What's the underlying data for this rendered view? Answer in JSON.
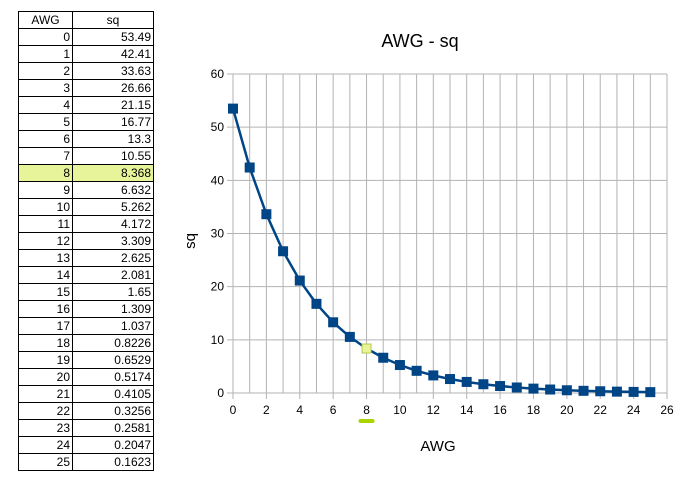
{
  "table": {
    "headers": [
      "AWG",
      "sq"
    ],
    "rows": [
      [
        "0",
        "53.49"
      ],
      [
        "1",
        "42.41"
      ],
      [
        "2",
        "33.63"
      ],
      [
        "3",
        "26.66"
      ],
      [
        "4",
        "21.15"
      ],
      [
        "5",
        "16.77"
      ],
      [
        "6",
        "13.3"
      ],
      [
        "7",
        "10.55"
      ],
      [
        "8",
        "8.368"
      ],
      [
        "9",
        "6.632"
      ],
      [
        "10",
        "5.262"
      ],
      [
        "11",
        "4.172"
      ],
      [
        "12",
        "3.309"
      ],
      [
        "13",
        "2.625"
      ],
      [
        "14",
        "2.081"
      ],
      [
        "15",
        "1.65"
      ],
      [
        "16",
        "1.309"
      ],
      [
        "17",
        "1.037"
      ],
      [
        "18",
        "0.8226"
      ],
      [
        "19",
        "0.6529"
      ],
      [
        "20",
        "0.5174"
      ],
      [
        "21",
        "0.4105"
      ],
      [
        "22",
        "0.3256"
      ],
      [
        "23",
        "0.2581"
      ],
      [
        "24",
        "0.2047"
      ],
      [
        "25",
        "0.1623"
      ]
    ],
    "highlight_row": 8,
    "highlight_color": "#e8f49a"
  },
  "chart_data": {
    "type": "scatter",
    "title": "AWG - sq",
    "xlabel": "AWG",
    "ylabel": "sq",
    "xlim": [
      0,
      26
    ],
    "ylim": [
      0,
      60
    ],
    "xticks": [
      0,
      2,
      4,
      6,
      8,
      10,
      12,
      14,
      16,
      18,
      20,
      22,
      24,
      26
    ],
    "yticks": [
      0,
      10,
      20,
      30,
      40,
      50,
      60
    ],
    "grid": true,
    "series": [
      {
        "x": [
          0,
          1,
          2,
          3,
          4,
          5,
          6,
          7,
          8,
          9,
          10,
          11,
          12,
          13,
          14,
          15,
          16,
          17,
          18,
          19,
          20,
          21,
          22,
          23,
          24,
          25
        ],
        "y": [
          53.49,
          42.41,
          33.63,
          26.66,
          21.15,
          16.77,
          13.3,
          10.55,
          8.368,
          6.632,
          5.262,
          4.172,
          3.309,
          2.625,
          2.081,
          1.65,
          1.309,
          1.037,
          0.8226,
          0.6529,
          0.5174,
          0.4105,
          0.3256,
          0.2581,
          0.2047,
          0.1623
        ],
        "color": "#004586",
        "marker": "square",
        "line": true
      }
    ],
    "highlight": {
      "x": 8,
      "color": "#e8f49a",
      "tick_marker_color": "#aad400"
    }
  }
}
